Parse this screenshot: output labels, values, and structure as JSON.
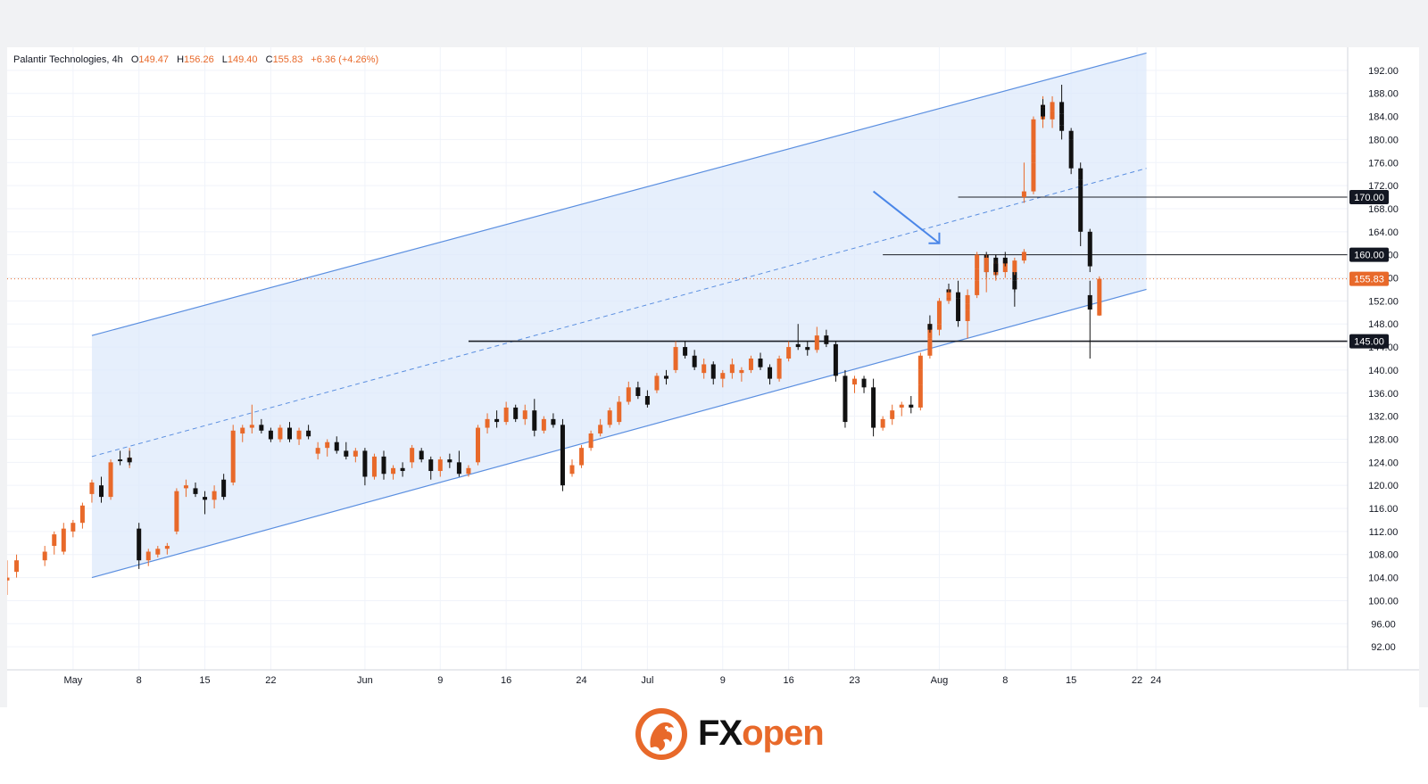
{
  "legend": {
    "symbol": "Palantir Technologies",
    "interval": "4h",
    "open_label": "O",
    "open": "149.47",
    "high_label": "H",
    "high": "156.26",
    "low_label": "L",
    "low": "149.40",
    "close_label": "C",
    "close": "155.83",
    "change": "+6.36 (+4.26%)"
  },
  "logo": {
    "part1": "FX",
    "part2": "open"
  },
  "colors": {
    "up_candle": "#e8692a",
    "down_candle": "#111111",
    "channel_fill": "#dce8fb",
    "channel_line": "#5b8fe0",
    "arrow": "#4a86e8",
    "horizontal_line": "#1c1f26",
    "price_line": "#e8692a"
  },
  "chart_data": {
    "type": "candlestick",
    "title": "",
    "xlabel": "",
    "ylabel": "",
    "ylim": [
      88,
      196
    ],
    "y_ticks": [
      "92.00",
      "96.00",
      "100.00",
      "104.00",
      "108.00",
      "112.00",
      "116.00",
      "120.00",
      "124.00",
      "128.00",
      "132.00",
      "136.00",
      "140.00",
      "144.00",
      "148.00",
      "152.00",
      "156.00",
      "160.00",
      "164.00",
      "168.00",
      "172.00",
      "176.00",
      "180.00",
      "184.00",
      "188.00",
      "192.00"
    ],
    "x_ticks": [
      {
        "label": "May",
        "date": "2025-05-01"
      },
      {
        "label": "8",
        "date": "2025-05-08"
      },
      {
        "label": "15",
        "date": "2025-05-15"
      },
      {
        "label": "22",
        "date": "2025-05-22"
      },
      {
        "label": "Jun",
        "date": "2025-06-01"
      },
      {
        "label": "9",
        "date": "2025-06-09"
      },
      {
        "label": "16",
        "date": "2025-06-16"
      },
      {
        "label": "24",
        "date": "2025-06-24"
      },
      {
        "label": "Jul",
        "date": "2025-07-01"
      },
      {
        "label": "9",
        "date": "2025-07-09"
      },
      {
        "label": "16",
        "date": "2025-07-16"
      },
      {
        "label": "23",
        "date": "2025-07-23"
      },
      {
        "label": "Aug",
        "date": "2025-08-01"
      },
      {
        "label": "8",
        "date": "2025-08-08"
      },
      {
        "label": "15",
        "date": "2025-08-15"
      },
      {
        "label": "22",
        "date": "2025-08-22"
      },
      {
        "label": "24",
        "date": "2025-08-24"
      }
    ],
    "price_labels": [
      {
        "value": 170.0,
        "text": "170.00",
        "style": "dark"
      },
      {
        "value": 160.0,
        "text": "160.00",
        "style": "dark"
      },
      {
        "value": 155.83,
        "text": "155.83",
        "style": "orange"
      },
      {
        "value": 145.0,
        "text": "145.00",
        "style": "dark"
      }
    ],
    "horizontal_lines": [
      {
        "value": 170.0,
        "from_date": "2025-08-03",
        "style": "thin"
      },
      {
        "value": 160.0,
        "from_date": "2025-07-26",
        "style": "thin"
      },
      {
        "value": 145.0,
        "from_date": "2025-06-12",
        "style": "thick"
      }
    ],
    "current_price": 155.83,
    "channel": {
      "start_date": "2025-05-03",
      "end_date": "2025-08-23",
      "upper": [
        146,
        195
      ],
      "middle": [
        125,
        175
      ],
      "lower": [
        104,
        154
      ]
    },
    "arrow": {
      "from": [
        "2025-07-25",
        171
      ],
      "to": [
        "2025-08-01",
        162
      ]
    },
    "candles": [
      [
        "2025-04-24",
        103.5,
        107.0,
        101.0,
        104.0
      ],
      [
        "2025-04-25",
        105.0,
        108.0,
        104.0,
        107.0
      ],
      [
        "2025-04-28",
        107.0,
        109.5,
        106.0,
        108.5
      ],
      [
        "2025-04-29",
        109.5,
        112.0,
        108.0,
        111.5
      ],
      [
        "2025-04-30",
        108.5,
        113.5,
        108.0,
        112.5
      ],
      [
        "2025-05-01",
        112.0,
        114.0,
        111.0,
        113.5
      ],
      [
        "2025-05-02",
        113.5,
        117.0,
        112.5,
        116.5
      ],
      [
        "2025-05-03",
        118.5,
        121.0,
        117.0,
        120.5
      ],
      [
        "2025-05-04",
        120.0,
        121.5,
        117.0,
        118.0
      ],
      [
        "2025-05-05",
        118.0,
        124.5,
        117.5,
        124.0
      ],
      [
        "2025-05-06",
        124.5,
        126.0,
        123.5,
        124.2
      ],
      [
        "2025-05-07",
        124.2,
        126.5,
        123.0,
        124.8
      ],
      [
        "2025-05-07",
        124.8,
        126.0,
        123.5,
        124.0
      ],
      [
        "2025-05-08",
        112.5,
        113.5,
        105.5,
        107.0
      ],
      [
        "2025-05-09",
        107.0,
        109.0,
        106.0,
        108.5
      ],
      [
        "2025-05-10",
        108.0,
        109.5,
        107.5,
        109.0
      ],
      [
        "2025-05-11",
        109.0,
        110.0,
        108.0,
        109.5
      ],
      [
        "2025-05-12",
        112.0,
        119.5,
        111.5,
        119.0
      ],
      [
        "2025-05-13",
        119.5,
        121.0,
        118.0,
        120.0
      ],
      [
        "2025-05-14",
        119.5,
        120.5,
        118.0,
        118.5
      ],
      [
        "2025-05-15",
        118.0,
        119.0,
        115.0,
        117.5
      ],
      [
        "2025-05-16",
        117.5,
        120.0,
        116.0,
        119.0
      ],
      [
        "2025-05-17",
        121.0,
        122.0,
        117.5,
        118.0
      ],
      [
        "2025-05-18",
        120.5,
        130.5,
        120.0,
        129.5
      ],
      [
        "2025-05-19",
        129.0,
        130.5,
        127.5,
        130.0
      ],
      [
        "2025-05-20",
        130.0,
        134.0,
        129.0,
        130.5
      ],
      [
        "2025-05-21",
        130.5,
        131.5,
        129.0,
        129.5
      ],
      [
        "2025-05-22",
        129.5,
        130.0,
        127.5,
        128.0
      ],
      [
        "2025-05-23",
        128.0,
        130.5,
        127.5,
        130.0
      ],
      [
        "2025-05-24",
        130.0,
        131.0,
        127.5,
        128.0
      ],
      [
        "2025-05-25",
        128.0,
        130.0,
        127.0,
        129.5
      ],
      [
        "2025-05-26",
        129.5,
        130.5,
        128.0,
        128.5
      ],
      [
        "2025-05-27",
        125.5,
        127.5,
        124.5,
        126.5
      ],
      [
        "2025-05-28",
        126.5,
        128.0,
        125.0,
        127.5
      ],
      [
        "2025-05-29",
        127.5,
        128.5,
        125.5,
        126.0
      ],
      [
        "2025-05-30",
        126.0,
        127.5,
        124.5,
        125.0
      ],
      [
        "2025-05-31",
        125.0,
        126.5,
        124.0,
        126.0
      ],
      [
        "2025-06-01",
        126.0,
        126.5,
        120.0,
        121.5
      ],
      [
        "2025-06-02",
        121.5,
        125.5,
        121.0,
        125.0
      ],
      [
        "2025-06-03",
        125.0,
        126.0,
        121.0,
        122.0
      ],
      [
        "2025-06-04",
        122.0,
        123.5,
        121.0,
        123.0
      ],
      [
        "2025-06-05",
        123.0,
        124.0,
        121.5,
        122.5
      ],
      [
        "2025-06-06",
        124.0,
        127.0,
        123.0,
        126.5
      ],
      [
        "2025-06-07",
        126.0,
        126.5,
        124.0,
        124.5
      ],
      [
        "2025-06-08",
        124.5,
        125.0,
        121.0,
        122.5
      ],
      [
        "2025-06-09",
        122.5,
        125.0,
        121.5,
        124.5
      ],
      [
        "2025-06-10",
        124.5,
        125.5,
        123.0,
        124.0
      ],
      [
        "2025-06-11",
        124.0,
        126.0,
        121.5,
        122.0
      ],
      [
        "2025-06-12",
        122.0,
        123.5,
        121.5,
        123.0
      ],
      [
        "2025-06-13",
        124.0,
        130.5,
        123.5,
        130.0
      ],
      [
        "2025-06-14",
        130.0,
        132.5,
        129.0,
        131.5
      ],
      [
        "2025-06-15",
        131.5,
        133.0,
        130.0,
        131.0
      ],
      [
        "2025-06-16",
        131.0,
        134.5,
        130.5,
        133.5
      ],
      [
        "2025-06-17",
        133.5,
        134.0,
        131.0,
        131.5
      ],
      [
        "2025-06-18",
        131.5,
        134.0,
        130.5,
        133.0
      ],
      [
        "2025-06-19",
        133.0,
        135.0,
        128.5,
        129.5
      ],
      [
        "2025-06-20",
        129.5,
        132.0,
        129.0,
        131.5
      ],
      [
        "2025-06-21",
        131.5,
        132.5,
        130.0,
        130.5
      ],
      [
        "2025-06-22",
        130.5,
        131.5,
        119.0,
        120.0
      ],
      [
        "2025-06-23",
        122.0,
        124.5,
        121.5,
        123.5
      ],
      [
        "2025-06-24",
        123.5,
        127.0,
        123.0,
        126.5
      ],
      [
        "2025-06-25",
        126.5,
        129.5,
        126.0,
        129.0
      ],
      [
        "2025-06-26",
        129.0,
        131.5,
        128.5,
        130.5
      ],
      [
        "2025-06-27",
        130.5,
        133.5,
        130.0,
        133.0
      ],
      [
        "2025-06-28",
        131.0,
        135.5,
        130.5,
        134.5
      ],
      [
        "2025-06-29",
        134.5,
        138.0,
        134.0,
        137.0
      ],
      [
        "2025-06-30",
        137.0,
        138.0,
        135.0,
        135.5
      ],
      [
        "2025-07-01",
        135.5,
        136.5,
        133.5,
        134.0
      ],
      [
        "2025-07-02",
        136.5,
        139.5,
        136.0,
        139.0
      ],
      [
        "2025-07-03",
        139.0,
        140.0,
        137.5,
        138.5
      ],
      [
        "2025-07-04",
        140.0,
        145.0,
        139.5,
        144.0
      ],
      [
        "2025-07-05",
        144.0,
        145.0,
        142.0,
        142.5
      ],
      [
        "2025-07-06",
        142.5,
        143.5,
        140.0,
        140.5
      ],
      [
        "2025-07-07",
        139.5,
        142.0,
        138.5,
        141.0
      ],
      [
        "2025-07-08",
        141.0,
        141.5,
        137.5,
        138.5
      ],
      [
        "2025-07-09",
        138.5,
        140.0,
        137.0,
        139.5
      ],
      [
        "2025-07-10",
        139.5,
        142.0,
        138.5,
        141.0
      ],
      [
        "2025-07-11",
        139.5,
        140.5,
        138.0,
        140.0
      ],
      [
        "2025-07-12",
        140.0,
        142.5,
        139.5,
        142.0
      ],
      [
        "2025-07-13",
        142.0,
        143.0,
        140.0,
        140.5
      ],
      [
        "2025-07-14",
        140.5,
        141.0,
        137.5,
        138.5
      ],
      [
        "2025-07-15",
        138.5,
        142.5,
        138.0,
        142.0
      ],
      [
        "2025-07-16",
        142.0,
        145.0,
        141.5,
        144.0
      ],
      [
        "2025-07-17",
        144.5,
        148.0,
        143.5,
        144.0
      ],
      [
        "2025-07-18",
        144.0,
        145.0,
        142.5,
        143.5
      ],
      [
        "2025-07-19",
        143.5,
        147.5,
        143.0,
        146.0
      ],
      [
        "2025-07-20",
        146.0,
        147.0,
        144.0,
        144.5
      ],
      [
        "2025-07-21",
        144.5,
        145.0,
        138.0,
        139.0
      ],
      [
        "2025-07-22",
        139.0,
        140.0,
        130.0,
        131.0
      ],
      [
        "2025-07-23",
        137.5,
        139.0,
        136.0,
        138.5
      ],
      [
        "2025-07-24",
        138.5,
        139.0,
        136.0,
        137.0
      ],
      [
        "2025-07-25",
        137.0,
        138.5,
        128.5,
        130.0
      ],
      [
        "2025-07-26",
        130.0,
        132.0,
        129.5,
        131.5
      ],
      [
        "2025-07-27",
        131.5,
        134.0,
        130.5,
        133.0
      ],
      [
        "2025-07-28",
        133.5,
        134.5,
        132.0,
        134.0
      ],
      [
        "2025-07-29",
        134.0,
        135.5,
        132.5,
        133.5
      ],
      [
        "2025-07-30",
        133.5,
        138.0,
        133.0,
        137.5
      ]
    ]
  }
}
